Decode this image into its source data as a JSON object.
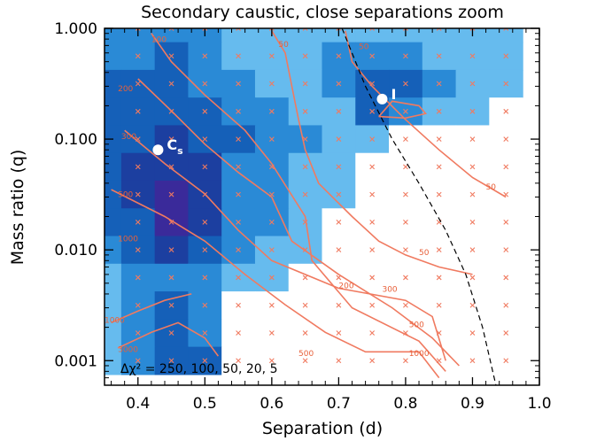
{
  "chart_data": {
    "type": "heatmap",
    "title": "Secondary caustic, close separations zoom",
    "xlabel": "Separation (d)",
    "ylabel": "Mass ratio (q)",
    "xlim": [
      0.35,
      1.0
    ],
    "ylim": [
      0.0006,
      1.0
    ],
    "yscale": "log",
    "x_ticks": [
      0.4,
      0.5,
      0.6,
      0.7,
      0.8,
      0.9,
      1.0
    ],
    "x_tick_labels": [
      "0.4",
      "0.5",
      "0.6",
      "0.7",
      "0.8",
      "0.9",
      "1.0"
    ],
    "y_ticks": [
      0.001,
      0.01,
      0.1,
      1.0
    ],
    "y_tick_labels": [
      "0.001",
      "0.010",
      "0.100",
      "1.000"
    ],
    "grid": false,
    "legend_text": "Δχ² = 250, 100, 50, 20, 5",
    "chi2_levels": [
      250,
      100,
      50,
      20,
      5
    ],
    "colors": {
      "level_0": "#ffffff",
      "level_1": "#66bbee",
      "level_2": "#2a8ad6",
      "level_3": "#1560b8",
      "level_4": "#1c3fa0",
      "level_5": "#3a2a9a",
      "contour_line": "#f07a60",
      "grid_marker": "#f07a60"
    },
    "grid_x": [
      0.35,
      0.4,
      0.45,
      0.5,
      0.55,
      0.6,
      0.65,
      0.7,
      0.75,
      0.8,
      0.85,
      0.9,
      0.95
    ],
    "grid_logq": [
      0.0,
      -0.25,
      -0.5,
      -0.75,
      -1.0,
      -1.25,
      -1.5,
      -1.75,
      -2.0,
      -2.25,
      -2.5,
      -2.75,
      -3.0
    ],
    "chi2_levels_grid": [
      [
        2,
        2,
        2,
        2,
        1,
        1,
        1,
        1,
        1,
        1,
        1,
        1,
        1
      ],
      [
        2,
        2,
        3,
        2,
        1,
        1,
        1,
        2,
        2,
        2,
        1,
        1,
        1
      ],
      [
        3,
        3,
        3,
        2,
        2,
        1,
        1,
        2,
        3,
        3,
        2,
        1,
        1
      ],
      [
        3,
        3,
        3,
        3,
        2,
        2,
        1,
        1,
        3,
        2,
        1,
        1,
        0
      ],
      [
        3,
        3,
        4,
        3,
        3,
        2,
        2,
        1,
        1,
        0,
        0,
        0,
        0
      ],
      [
        3,
        4,
        4,
        4,
        2,
        2,
        1,
        1,
        0,
        0,
        0,
        0,
        0
      ],
      [
        3,
        4,
        5,
        4,
        2,
        2,
        1,
        1,
        0,
        0,
        0,
        0,
        0
      ],
      [
        3,
        3,
        5,
        4,
        2,
        2,
        1,
        0,
        0,
        0,
        0,
        0,
        0
      ],
      [
        2,
        3,
        4,
        3,
        2,
        1,
        1,
        0,
        0,
        0,
        0,
        0,
        0
      ],
      [
        1,
        2,
        2,
        2,
        1,
        1,
        0,
        0,
        0,
        0,
        0,
        0,
        0
      ],
      [
        1,
        2,
        3,
        2,
        0,
        0,
        0,
        0,
        0,
        0,
        0,
        0,
        0
      ],
      [
        1,
        2,
        3,
        2,
        0,
        0,
        0,
        0,
        0,
        0,
        0,
        0,
        0
      ],
      [
        1,
        2,
        3,
        3,
        0,
        0,
        0,
        0,
        0,
        0,
        0,
        0,
        0
      ]
    ],
    "points": [
      {
        "label": "C",
        "subscript": "s",
        "d": 0.43,
        "q": 0.08
      },
      {
        "label": "I",
        "subscript": "",
        "d": 0.765,
        "q": 0.23
      }
    ],
    "contour_labels": [
      {
        "text": "100",
        "d": 0.42,
        "q": 0.75
      },
      {
        "text": "50",
        "d": 0.61,
        "q": 0.68
      },
      {
        "text": "50",
        "d": 0.73,
        "q": 0.65
      },
      {
        "text": "200",
        "d": 0.37,
        "q": 0.27
      },
      {
        "text": "300",
        "d": 0.375,
        "q": 0.1
      },
      {
        "text": "500",
        "d": 0.37,
        "q": 0.03
      },
      {
        "text": "1000",
        "d": 0.37,
        "q": 0.012
      },
      {
        "text": "1000",
        "d": 0.35,
        "q": 0.0022
      },
      {
        "text": "3000",
        "d": 0.37,
        "q": 0.0012
      },
      {
        "text": "50",
        "d": 0.92,
        "q": 0.035
      },
      {
        "text": "50",
        "d": 0.82,
        "q": 0.009
      },
      {
        "text": "200",
        "d": 0.7,
        "q": 0.0045
      },
      {
        "text": "300",
        "d": 0.765,
        "q": 0.0042
      },
      {
        "text": "500",
        "d": 0.805,
        "q": 0.002
      },
      {
        "text": "500",
        "d": 0.64,
        "q": 0.0011
      },
      {
        "text": "1000",
        "d": 0.805,
        "q": 0.0011
      }
    ]
  }
}
